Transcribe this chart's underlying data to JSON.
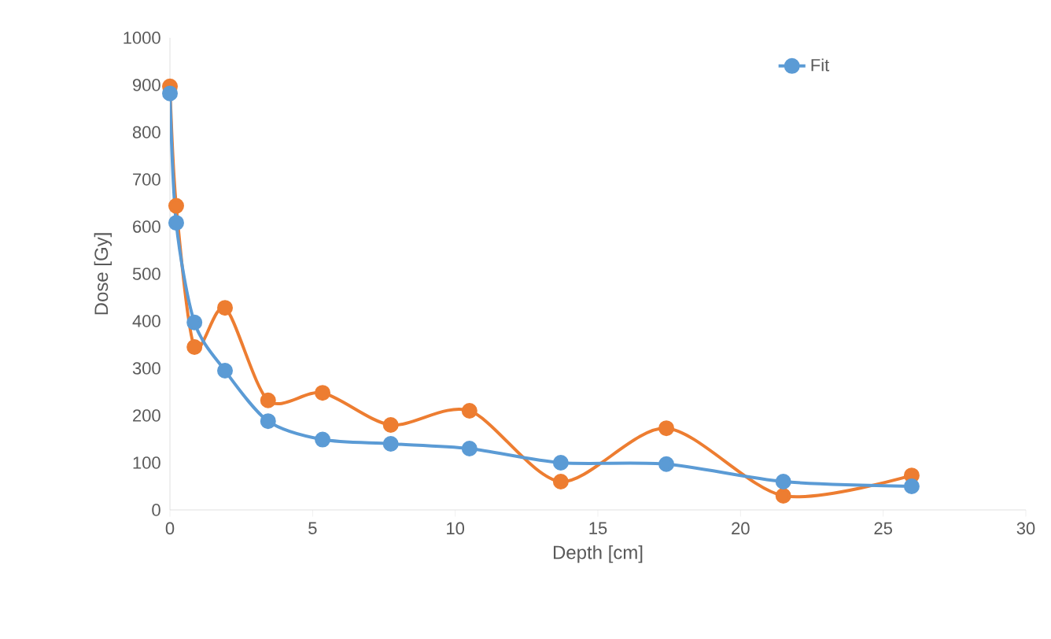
{
  "chart_data": {
    "type": "line",
    "xlabel": "Depth [cm]",
    "ylabel": "Dose [Gy]",
    "series": [
      {
        "color": "#ed7d31",
        "x": [
          0,
          0.22,
          0.86,
          1.93,
          3.44,
          5.35,
          7.74,
          10.5,
          13.7,
          17.4,
          21.5,
          26
        ],
        "values": [
          897,
          644,
          345,
          428,
          232,
          248,
          180,
          210,
          60,
          173,
          30,
          73
        ]
      },
      {
        "name": "Fit",
        "color": "#5b9bd5",
        "x": [
          0,
          0.22,
          0.86,
          1.93,
          3.44,
          5.35,
          7.74,
          10.5,
          13.7,
          17.4,
          21.5,
          26
        ],
        "values": [
          882,
          608,
          397,
          295,
          188,
          149,
          140,
          130,
          100,
          97,
          60,
          50
        ]
      }
    ],
    "xlim": [
      0,
      30
    ],
    "xticks": [
      0,
      5,
      10,
      15,
      20,
      25,
      30
    ],
    "ylim": [
      0,
      1000
    ],
    "yticks": [
      0,
      100,
      200,
      300,
      400,
      500,
      600,
      700,
      800,
      900,
      1000
    ],
    "marker": "circle",
    "line_style": "solid",
    "grid": false,
    "legend": "top right"
  }
}
